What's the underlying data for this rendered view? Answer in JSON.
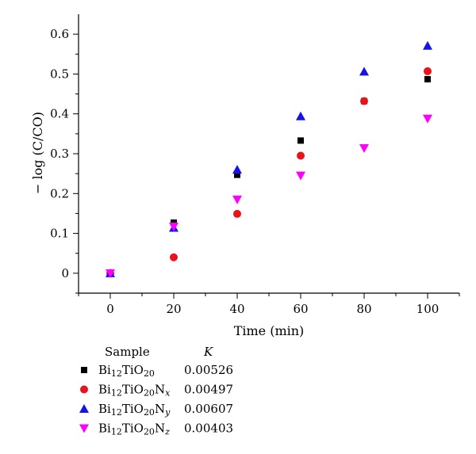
{
  "chart_data": {
    "type": "scatter",
    "xlabel": "Time (min)",
    "ylabel": "− log (C/CO)",
    "xlim": [
      -10,
      110
    ],
    "ylim": [
      -0.05,
      0.65
    ],
    "x_ticks": [
      0,
      20,
      40,
      60,
      80,
      100
    ],
    "x_tick_labels": [
      "0",
      "20",
      "40",
      "60",
      "80",
      "100"
    ],
    "y_ticks": [
      0,
      0.1,
      0.2,
      0.3,
      0.4,
      0.5,
      0.6
    ],
    "y_tick_labels": [
      "0",
      "0.1",
      "0.2",
      "0.3",
      "0.4",
      "0.5",
      "0.6"
    ],
    "grid": false,
    "legend_placement": "bottom-left, below plot",
    "legend_header": {
      "sample": "Sample",
      "k": "K"
    },
    "x": [
      0,
      20,
      40,
      60,
      80,
      100
    ],
    "series": [
      {
        "name": "Bi12TiO20",
        "name_parts": [
          [
            "Bi",
            ""
          ],
          [
            "12",
            "sub"
          ],
          [
            "TiO",
            ""
          ],
          [
            "20",
            "sub"
          ]
        ],
        "k": "0.00526",
        "marker": "square",
        "color": "#000000",
        "values": [
          0,
          0.127,
          0.247,
          0.333,
          0.432,
          0.487
        ]
      },
      {
        "name": "Bi12TiO20Nx",
        "name_parts": [
          [
            "Bi",
            ""
          ],
          [
            "12",
            "sub"
          ],
          [
            "TiO",
            ""
          ],
          [
            "20",
            "sub"
          ],
          [
            "N",
            ""
          ],
          [
            "x",
            "subi"
          ]
        ],
        "k": "0.00497",
        "marker": "circle",
        "color": "#e8141c",
        "values": [
          0,
          0.04,
          0.149,
          0.295,
          0.432,
          0.507
        ]
      },
      {
        "name": "Bi12TiO20Ny",
        "name_parts": [
          [
            "Bi",
            ""
          ],
          [
            "12",
            "sub"
          ],
          [
            "TiO",
            ""
          ],
          [
            "20",
            "sub"
          ],
          [
            "N",
            ""
          ],
          [
            "y",
            "subi"
          ]
        ],
        "k": "0.00607",
        "marker": "triangle-up",
        "color": "#1414e8",
        "values": [
          0,
          0.114,
          0.26,
          0.394,
          0.506,
          0.571
        ]
      },
      {
        "name": "Bi12TiO20Nz",
        "name_parts": [
          [
            "Bi",
            ""
          ],
          [
            "12",
            "sub"
          ],
          [
            "TiO",
            ""
          ],
          [
            "20",
            "sub"
          ],
          [
            "N",
            ""
          ],
          [
            "z",
            "subi"
          ]
        ],
        "k": "0.00403",
        "marker": "triangle-down",
        "color": "#ff00ff",
        "values": [
          0,
          0.117,
          0.185,
          0.245,
          0.314,
          0.388
        ]
      }
    ]
  }
}
